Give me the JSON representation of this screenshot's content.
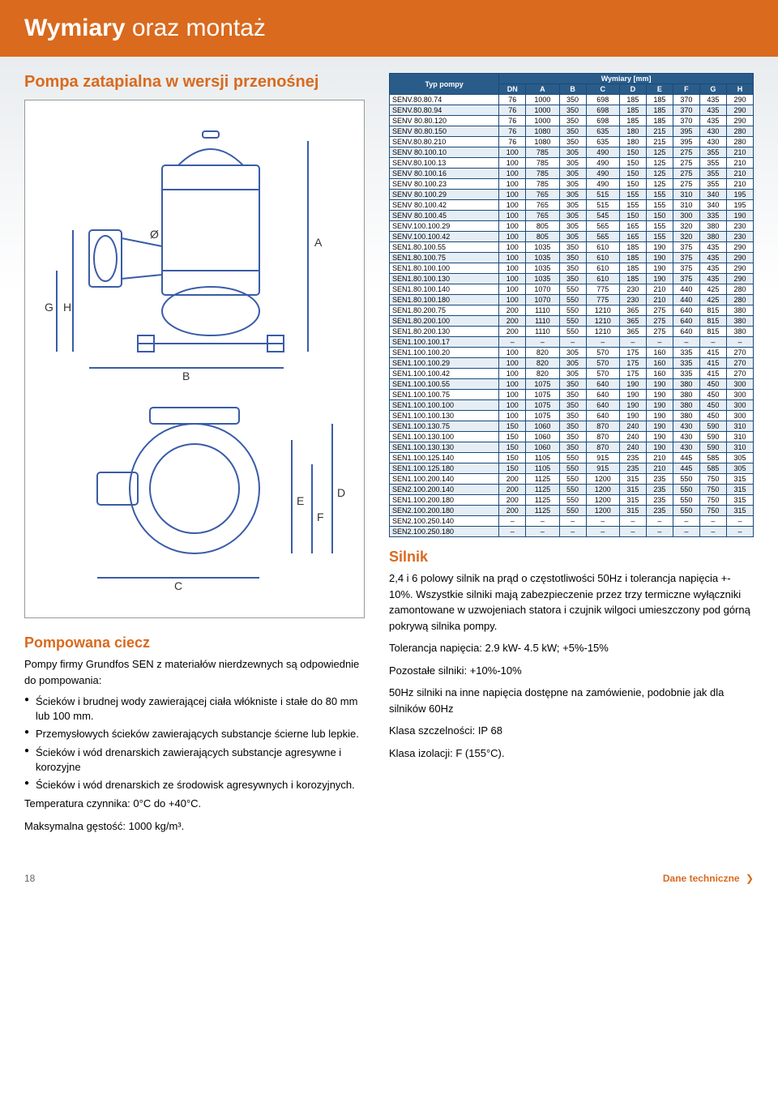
{
  "header": {
    "part1": "Wymiary",
    "part2": " oraz montaż"
  },
  "left": {
    "portable_title": "Pompa zatapialna w wersji przenośnej",
    "liquid_title": "Pompowana ciecz",
    "liquid_intro": "Pompy firmy Grundfos SEN z materiałów nierdzewnych są odpowiednie do pompowania:",
    "bullets": [
      "Ścieków i brudnej wody zawierającej ciała włókniste i stałe do 80 mm lub 100 mm.",
      "Przemysłowych ścieków zawierających substancje ścierne lub lepkie.",
      "Ścieków i wód drenarskich zawierających substancje agresywne i korozyjne",
      "Ścieków i wód drenarskich ze środowisk agresywnych i korozyjnych."
    ],
    "temp": "Temperatura czynnika: 0°C do +40°C.",
    "density": "Maksymalna gęstość: 1000 kg/m³."
  },
  "right": {
    "table_header_label": "Typ pompy",
    "dim_header": "Wymiary [mm]",
    "columns": [
      "DN",
      "A",
      "B",
      "C",
      "D",
      "E",
      "F",
      "G",
      "H"
    ],
    "rows": [
      [
        "SENV.80.80.74",
        "76",
        "1000",
        "350",
        "698",
        "185",
        "185",
        "370",
        "435",
        "290"
      ],
      [
        "SENV.80.80.94",
        "76",
        "1000",
        "350",
        "698",
        "185",
        "185",
        "370",
        "435",
        "290"
      ],
      [
        "SENV 80.80.120",
        "76",
        "1000",
        "350",
        "698",
        "185",
        "185",
        "370",
        "435",
        "290"
      ],
      [
        "SENV 80.80.150",
        "76",
        "1080",
        "350",
        "635",
        "180",
        "215",
        "395",
        "430",
        "280"
      ],
      [
        "SENV.80.80.210",
        "76",
        "1080",
        "350",
        "635",
        "180",
        "215",
        "395",
        "430",
        "280"
      ],
      [
        "SENV 80.100.10",
        "100",
        "785",
        "305",
        "490",
        "150",
        "125",
        "275",
        "355",
        "210"
      ],
      [
        "SENV.80.100.13",
        "100",
        "785",
        "305",
        "490",
        "150",
        "125",
        "275",
        "355",
        "210"
      ],
      [
        "SENV 80.100.16",
        "100",
        "785",
        "305",
        "490",
        "150",
        "125",
        "275",
        "355",
        "210"
      ],
      [
        "SENV 80.100.23",
        "100",
        "785",
        "305",
        "490",
        "150",
        "125",
        "275",
        "355",
        "210"
      ],
      [
        "SENV 80.100.29",
        "100",
        "765",
        "305",
        "515",
        "155",
        "155",
        "310",
        "340",
        "195"
      ],
      [
        "SENV 80.100.42",
        "100",
        "765",
        "305",
        "515",
        "155",
        "155",
        "310",
        "340",
        "195"
      ],
      [
        "SENV 80.100.45",
        "100",
        "765",
        "305",
        "545",
        "150",
        "150",
        "300",
        "335",
        "190"
      ],
      [
        "SENV.100.100.29",
        "100",
        "805",
        "305",
        "565",
        "165",
        "155",
        "320",
        "380",
        "230"
      ],
      [
        "SENV.100.100.42",
        "100",
        "805",
        "305",
        "565",
        "165",
        "155",
        "320",
        "380",
        "230"
      ],
      [
        "SEN1.80.100.55",
        "100",
        "1035",
        "350",
        "610",
        "185",
        "190",
        "375",
        "435",
        "290"
      ],
      [
        "SEN1.80.100.75",
        "100",
        "1035",
        "350",
        "610",
        "185",
        "190",
        "375",
        "435",
        "290"
      ],
      [
        "SEN1.80.100.100",
        "100",
        "1035",
        "350",
        "610",
        "185",
        "190",
        "375",
        "435",
        "290"
      ],
      [
        "SEN1.80.100.130",
        "100",
        "1035",
        "350",
        "610",
        "185",
        "190",
        "375",
        "435",
        "290"
      ],
      [
        "SEN1.80.100.140",
        "100",
        "1070",
        "550",
        "775",
        "230",
        "210",
        "440",
        "425",
        "280"
      ],
      [
        "SEN1.80.100.180",
        "100",
        "1070",
        "550",
        "775",
        "230",
        "210",
        "440",
        "425",
        "280"
      ],
      [
        "SEN1.80.200.75",
        "200",
        "1110",
        "550",
        "1210",
        "365",
        "275",
        "640",
        "815",
        "380"
      ],
      [
        "SEN1.80.200.100",
        "200",
        "1110",
        "550",
        "1210",
        "365",
        "275",
        "640",
        "815",
        "380"
      ],
      [
        "SEN1.80.200.130",
        "200",
        "1110",
        "550",
        "1210",
        "365",
        "275",
        "640",
        "815",
        "380"
      ],
      [
        "SEN1.100.100.17",
        "–",
        "–",
        "–",
        "–",
        "–",
        "–",
        "–",
        "–",
        "–"
      ],
      [
        "SEN1.100.100.20",
        "100",
        "820",
        "305",
        "570",
        "175",
        "160",
        "335",
        "415",
        "270"
      ],
      [
        "SEN1.100.100.29",
        "100",
        "820",
        "305",
        "570",
        "175",
        "160",
        "335",
        "415",
        "270"
      ],
      [
        "SEN1.100.100.42",
        "100",
        "820",
        "305",
        "570",
        "175",
        "160",
        "335",
        "415",
        "270"
      ],
      [
        "SEN1.100.100.55",
        "100",
        "1075",
        "350",
        "640",
        "190",
        "190",
        "380",
        "450",
        "300"
      ],
      [
        "SEN1.100.100.75",
        "100",
        "1075",
        "350",
        "640",
        "190",
        "190",
        "380",
        "450",
        "300"
      ],
      [
        "SEN1.100.100.100",
        "100",
        "1075",
        "350",
        "640",
        "190",
        "190",
        "380",
        "450",
        "300"
      ],
      [
        "SEN1.100.100.130",
        "100",
        "1075",
        "350",
        "640",
        "190",
        "190",
        "380",
        "450",
        "300"
      ],
      [
        "SEN1.100.130.75",
        "150",
        "1060",
        "350",
        "870",
        "240",
        "190",
        "430",
        "590",
        "310"
      ],
      [
        "SEN1.100.130.100",
        "150",
        "1060",
        "350",
        "870",
        "240",
        "190",
        "430",
        "590",
        "310"
      ],
      [
        "SEN1.100.130.130",
        "150",
        "1060",
        "350",
        "870",
        "240",
        "190",
        "430",
        "590",
        "310"
      ],
      [
        "SEN1.100.125.140",
        "150",
        "1105",
        "550",
        "915",
        "235",
        "210",
        "445",
        "585",
        "305"
      ],
      [
        "SEN1.100.125.180",
        "150",
        "1105",
        "550",
        "915",
        "235",
        "210",
        "445",
        "585",
        "305"
      ],
      [
        "SEN1.100.200.140",
        "200",
        "1125",
        "550",
        "1200",
        "315",
        "235",
        "550",
        "750",
        "315"
      ],
      [
        "SEN2.100.200.140",
        "200",
        "1125",
        "550",
        "1200",
        "315",
        "235",
        "550",
        "750",
        "315"
      ],
      [
        "SEN1.100.200.180",
        "200",
        "1125",
        "550",
        "1200",
        "315",
        "235",
        "550",
        "750",
        "315"
      ],
      [
        "SEN2.100.200.180",
        "200",
        "1125",
        "550",
        "1200",
        "315",
        "235",
        "550",
        "750",
        "315"
      ],
      [
        "SEN2.100.250.140",
        "–",
        "–",
        "–",
        "–",
        "–",
        "–",
        "–",
        "–",
        "–"
      ],
      [
        "SEN2.100.250.180",
        "–",
        "–",
        "–",
        "–",
        "–",
        "–",
        "–",
        "–",
        "–"
      ]
    ],
    "motor_title": "Silnik",
    "motor_p1": "2,4 i 6 polowy silnik na prąd o częstotliwości 50Hz i tolerancja napięcia +- 10%. Wszystkie silniki mają zabezpieczenie przez trzy termiczne wyłączniki zamontowane w uzwojeniach statora i czujnik wilgoci umieszczony pod górną pokrywą silnika pompy.",
    "motor_tol": "Tolerancja napięcia: 2.9 kW- 4.5 kW; +5%-15%",
    "motor_rest": "Pozostałe silniki: +10%-10%",
    "motor_p2": "50Hz silniki na inne napięcia dostępne na zamówienie, podobnie jak dla silników 60Hz",
    "motor_ip": "Klasa szczelności: IP 68",
    "motor_iso": "Klasa izolacji: F (155°C)."
  },
  "footer": {
    "page": "18",
    "section": "Dane techniczne"
  },
  "colors": {
    "orange": "#d96a1e",
    "table_header_bg": "#2a5c8a",
    "table_border": "#1a4a7a",
    "row_alt": "#e6eef5",
    "diag_stroke": "#3a5ca8"
  },
  "diagram": {
    "labels": [
      "Ø",
      "A",
      "G",
      "H",
      "B",
      "E",
      "F",
      "D",
      "C"
    ]
  }
}
